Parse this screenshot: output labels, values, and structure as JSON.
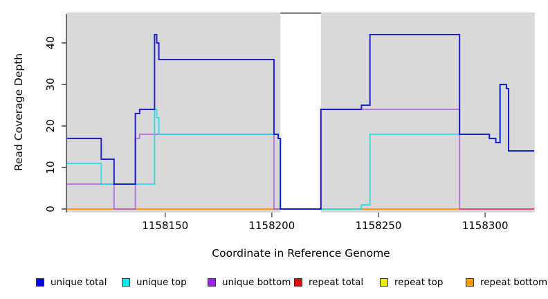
{
  "figure": {
    "xlabel": "Coordinate in Reference Genome",
    "ylabel": "Read Coverage Depth"
  },
  "chart_data": {
    "type": "line",
    "subtype": "step-coverage-plot",
    "title": "",
    "xlabel": "Coordinate in Reference Genome",
    "ylabel": "Read Coverage Depth",
    "xlim": [
      1158104,
      1158323
    ],
    "ylim": [
      0,
      47
    ],
    "x_ticks": [
      1158150,
      1158200,
      1158250,
      1158300
    ],
    "y_ticks": [
      0,
      10,
      20,
      30,
      40
    ],
    "panel_background": "#d9d9d9",
    "no_data_gap_x": [
      1158204,
      1158223
    ],
    "gap_border_color": "#7a7a7a",
    "axis_color": "#333333",
    "legend": [
      {
        "label": "unique total",
        "color": "#0000ee"
      },
      {
        "label": "unique top",
        "color": "#00eeee"
      },
      {
        "label": "unique bottom",
        "color": "#a020f0"
      },
      {
        "label": "repeat total",
        "color": "#ee0000"
      },
      {
        "label": "repeat top",
        "color": "#eeee00"
      },
      {
        "label": "repeat bottom",
        "color": "#ff9900"
      }
    ],
    "series": [
      {
        "name": "repeat top",
        "line_color": "#f5e626",
        "opacity": 1,
        "steps": [
          [
            1158104,
            0
          ]
        ],
        "x_end": 1158288
      },
      {
        "name": "repeat total",
        "line_color": "#d94f6d",
        "opacity": 1,
        "steps": [
          [
            1158104,
            0
          ]
        ],
        "x_end": 1158323
      },
      {
        "name": "repeat bottom",
        "line_color": "#ff9912",
        "opacity": 1,
        "steps": [
          [
            1158104,
            0
          ]
        ],
        "x_end": 1158288
      },
      {
        "name": "unique bottom",
        "line_color": "#a851e6",
        "opacity": 0.72,
        "steps": [
          [
            1158104,
            6
          ],
          [
            1158126,
            0
          ],
          [
            1158136,
            17
          ],
          [
            1158138,
            18
          ],
          [
            1158201,
            0
          ],
          [
            1158223,
            24
          ],
          [
            1158288,
            0
          ]
        ],
        "x_end": 1158288
      },
      {
        "name": "unique top",
        "line_color": "#19dce8",
        "opacity": 0.85,
        "steps": [
          [
            1158104,
            11
          ],
          [
            1158120,
            6
          ],
          [
            1158145,
            24
          ],
          [
            1158146,
            22
          ],
          [
            1158147,
            18
          ],
          [
            1158203,
            17
          ],
          [
            1158204,
            0
          ],
          [
            1158242,
            1
          ],
          [
            1158246,
            18
          ],
          [
            1158302,
            17
          ],
          [
            1158305,
            16
          ],
          [
            1158307,
            30
          ],
          [
            1158310,
            29
          ],
          [
            1158311,
            14
          ]
        ],
        "x_end": 1158323
      },
      {
        "name": "unique total",
        "line_color": "#0a0ad2",
        "opacity": 0.9,
        "steps": [
          [
            1158104,
            17
          ],
          [
            1158120,
            12
          ],
          [
            1158126,
            6
          ],
          [
            1158136,
            23
          ],
          [
            1158138,
            24
          ],
          [
            1158145,
            42
          ],
          [
            1158146,
            40
          ],
          [
            1158147,
            36
          ],
          [
            1158201,
            18
          ],
          [
            1158203,
            17
          ],
          [
            1158204,
            0
          ],
          [
            1158223,
            24
          ],
          [
            1158242,
            25
          ],
          [
            1158246,
            42
          ],
          [
            1158288,
            18
          ],
          [
            1158302,
            17
          ],
          [
            1158305,
            16
          ],
          [
            1158307,
            30
          ],
          [
            1158310,
            29
          ],
          [
            1158311,
            14
          ]
        ],
        "x_end": 1158323
      }
    ]
  }
}
